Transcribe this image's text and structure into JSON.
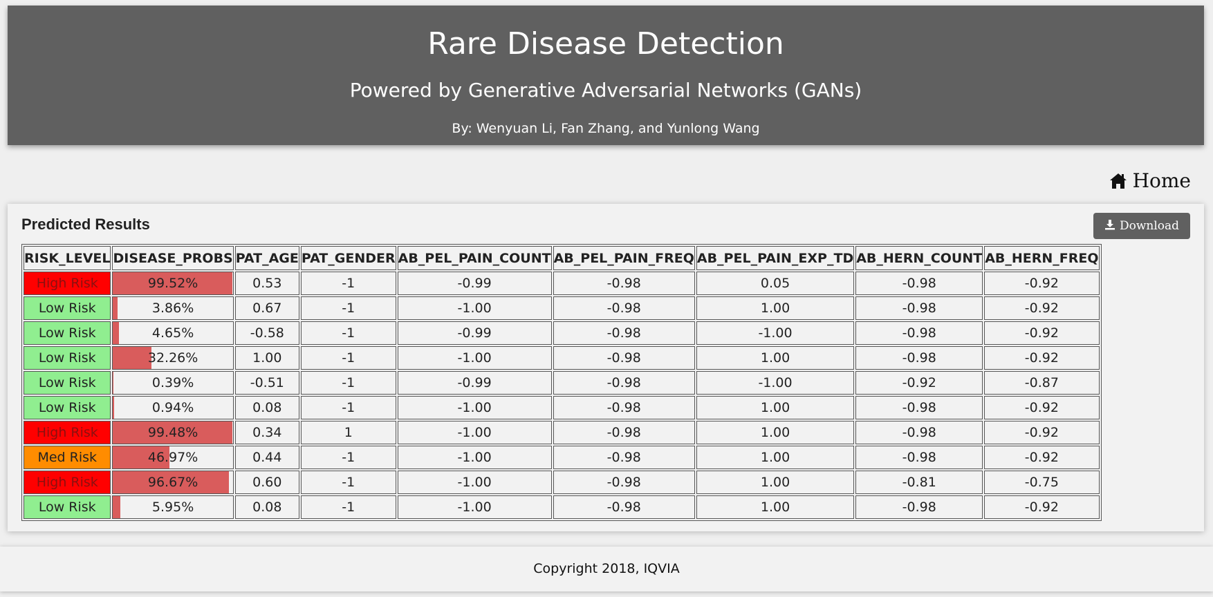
{
  "header": {
    "title": "Rare Disease Detection",
    "subtitle": "Powered by Generative Adversarial Networks (GANs)",
    "authors": "By: Wenyuan Li, Fan Zhang, and Yunlong Wang"
  },
  "nav": {
    "home_label": "Home",
    "home_icon": "home-icon"
  },
  "results": {
    "title": "Predicted Results",
    "download_label": "Download",
    "download_icon": "download-icon",
    "columns": [
      "RISK_LEVEL",
      "DISEASE_PROBS",
      "PAT_AGE",
      "PAT_GENDER",
      "AB_PEL_PAIN_COUNT",
      "AB_PEL_PAIN_FREQ",
      "AB_PEL_PAIN_EXP_TD",
      "AB_HERN_COUNT",
      "AB_HERN_FREQ"
    ],
    "rows": [
      {
        "risk": "High Risk",
        "level": "high",
        "prob": "99.52%",
        "prob_value": 99.52,
        "age": "0.53",
        "gender": "-1",
        "pel_count": "-0.99",
        "pel_freq": "-0.98",
        "pel_exp": "0.05",
        "hern_count": "-0.98",
        "hern_freq": "-0.92"
      },
      {
        "risk": "Low Risk",
        "level": "low",
        "prob": "3.86%",
        "prob_value": 3.86,
        "age": "0.67",
        "gender": "-1",
        "pel_count": "-1.00",
        "pel_freq": "-0.98",
        "pel_exp": "1.00",
        "hern_count": "-0.98",
        "hern_freq": "-0.92"
      },
      {
        "risk": "Low Risk",
        "level": "low",
        "prob": "4.65%",
        "prob_value": 4.65,
        "age": "-0.58",
        "gender": "-1",
        "pel_count": "-0.99",
        "pel_freq": "-0.98",
        "pel_exp": "-1.00",
        "hern_count": "-0.98",
        "hern_freq": "-0.92"
      },
      {
        "risk": "Low Risk",
        "level": "low",
        "prob": "32.26%",
        "prob_value": 32.26,
        "age": "1.00",
        "gender": "-1",
        "pel_count": "-1.00",
        "pel_freq": "-0.98",
        "pel_exp": "1.00",
        "hern_count": "-0.98",
        "hern_freq": "-0.92"
      },
      {
        "risk": "Low Risk",
        "level": "low",
        "prob": "0.39%",
        "prob_value": 0.39,
        "age": "-0.51",
        "gender": "-1",
        "pel_count": "-0.99",
        "pel_freq": "-0.98",
        "pel_exp": "-1.00",
        "hern_count": "-0.92",
        "hern_freq": "-0.87"
      },
      {
        "risk": "Low Risk",
        "level": "low",
        "prob": "0.94%",
        "prob_value": 0.94,
        "age": "0.08",
        "gender": "-1",
        "pel_count": "-1.00",
        "pel_freq": "-0.98",
        "pel_exp": "1.00",
        "hern_count": "-0.98",
        "hern_freq": "-0.92"
      },
      {
        "risk": "High Risk",
        "level": "high",
        "prob": "99.48%",
        "prob_value": 99.48,
        "age": "0.34",
        "gender": "1",
        "pel_count": "-1.00",
        "pel_freq": "-0.98",
        "pel_exp": "1.00",
        "hern_count": "-0.98",
        "hern_freq": "-0.92"
      },
      {
        "risk": "Med Risk",
        "level": "med",
        "prob": "46.97%",
        "prob_value": 46.97,
        "age": "0.44",
        "gender": "-1",
        "pel_count": "-1.00",
        "pel_freq": "-0.98",
        "pel_exp": "1.00",
        "hern_count": "-0.98",
        "hern_freq": "-0.92"
      },
      {
        "risk": "High Risk",
        "level": "high",
        "prob": "96.67%",
        "prob_value": 96.67,
        "age": "0.60",
        "gender": "-1",
        "pel_count": "-1.00",
        "pel_freq": "-0.98",
        "pel_exp": "1.00",
        "hern_count": "-0.81",
        "hern_freq": "-0.75"
      },
      {
        "risk": "Low Risk",
        "level": "low",
        "prob": "5.95%",
        "prob_value": 5.95,
        "age": "0.08",
        "gender": "-1",
        "pel_count": "-1.00",
        "pel_freq": "-0.98",
        "pel_exp": "1.00",
        "hern_count": "-0.98",
        "hern_freq": "-0.92"
      }
    ]
  },
  "footer": {
    "copyright": "Copyright 2018, IQVIA"
  },
  "colors": {
    "header_bg": "#606060",
    "high_risk": "#ff0000",
    "med_risk": "#ff8c00",
    "low_risk": "#90ee90",
    "prob_bar": "#d95c5c"
  }
}
